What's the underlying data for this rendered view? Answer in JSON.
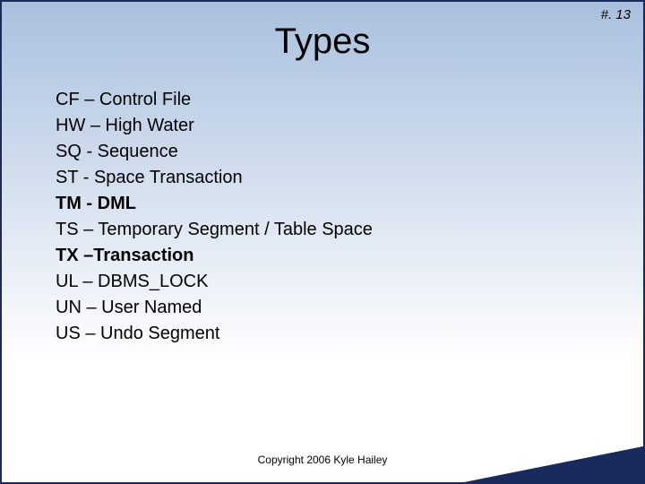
{
  "page_number": "#. 13",
  "title": "Types",
  "items": [
    {
      "text": "CF – Control File",
      "bold": false
    },
    {
      "text": "HW – High Water",
      "bold": false
    },
    {
      "text": "SQ  - Sequence",
      "bold": false
    },
    {
      "text": "ST  - Space Transaction",
      "bold": false
    },
    {
      "text": "TM - DML",
      "bold": true
    },
    {
      "text": "TS – Temporary Segment / Table Space",
      "bold": false
    },
    {
      "text": "TX –Transaction",
      "bold": true
    },
    {
      "text": "UL – DBMS_LOCK",
      "bold": false
    },
    {
      "text": "UN – User Named",
      "bold": false
    },
    {
      "text": "US – Undo Segment",
      "bold": false
    }
  ],
  "footer": "Copyright 2006 Kyle Hailey",
  "colors": {
    "border": "#1a2a5c",
    "bg_top": "#a9c0de",
    "bg_bottom": "#ffffff",
    "corner": "#1a2a5c",
    "text": "#000000"
  },
  "fonts": {
    "title_size": 40,
    "body_size": 20,
    "footer_size": 12,
    "page_num_size": 15
  }
}
